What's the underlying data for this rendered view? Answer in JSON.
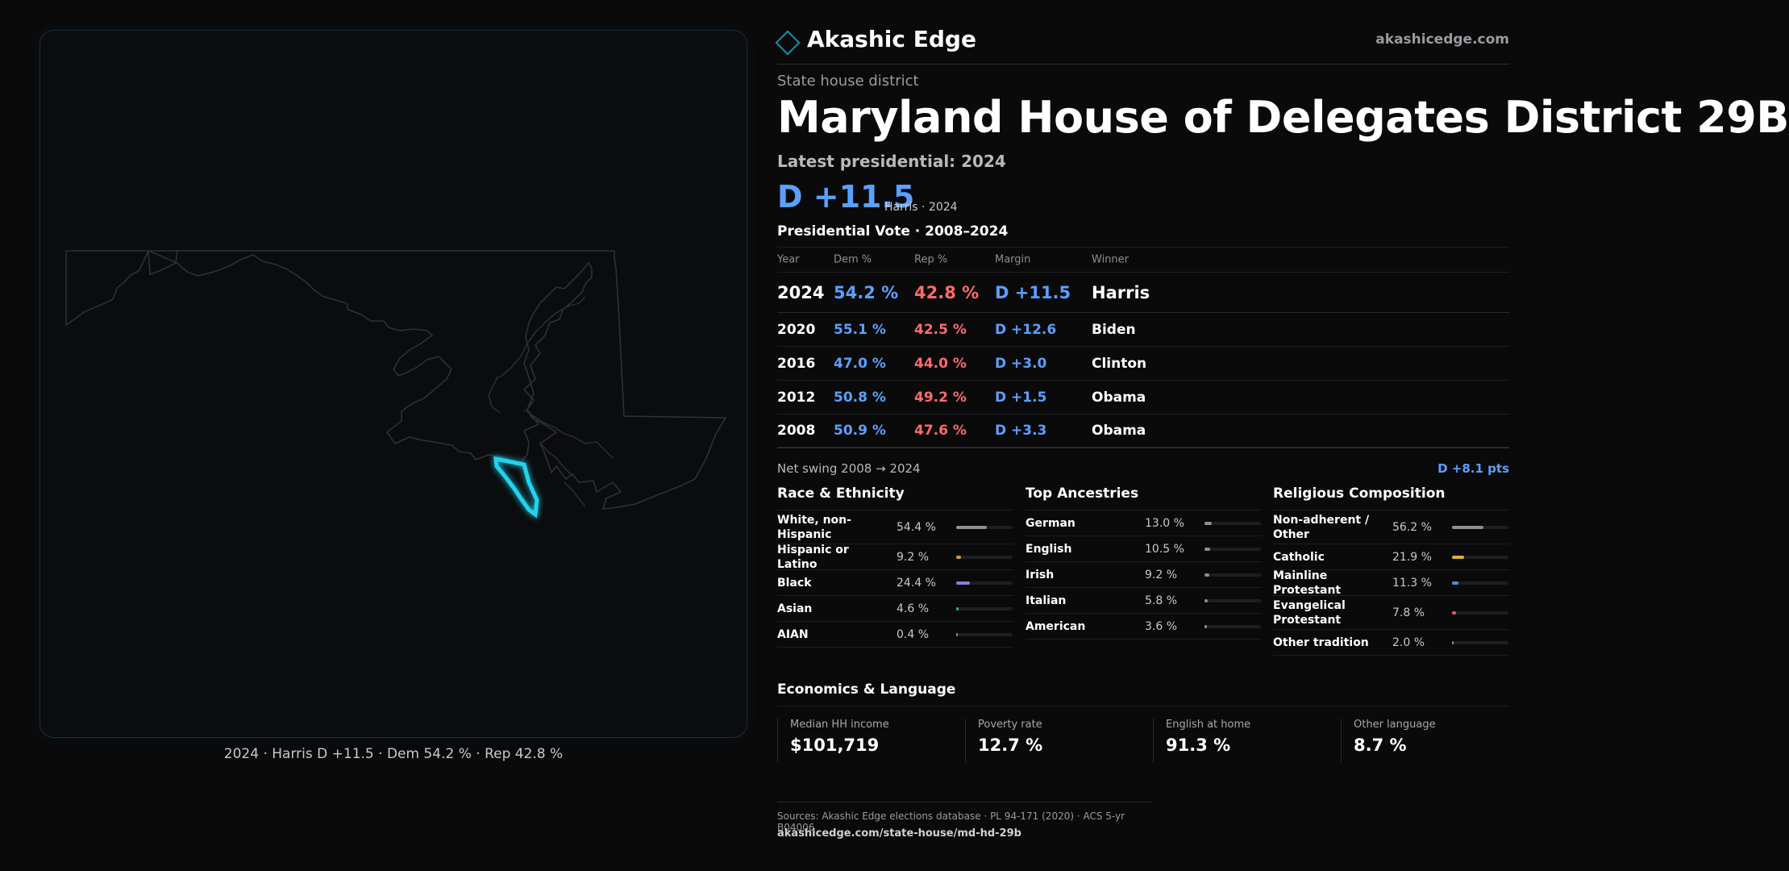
{
  "brand": {
    "name": "Akashic Edge",
    "url": "akashicedge.com"
  },
  "kicker": "State house district",
  "title": "Maryland House of Delegates District 29B",
  "latest": "Latest presidential: 2024",
  "headline": {
    "margin": "D +11.5",
    "sub": "Harris · 2024"
  },
  "pres_section_title": "Presidential Vote · 2008–2024",
  "pres_table": {
    "headers": [
      "Year",
      "Dem %",
      "Rep %",
      "Margin",
      "Winner"
    ],
    "rows": [
      [
        "2024",
        "54.2 %",
        "42.8 %",
        "D +11.5",
        "Harris"
      ],
      [
        "2020",
        "55.1 %",
        "42.5 %",
        "D +12.6",
        "Biden"
      ],
      [
        "2016",
        "47.0 %",
        "44.0 %",
        "D +3.0",
        "Clinton"
      ],
      [
        "2012",
        "50.8 %",
        "49.2 %",
        "D +1.5",
        "Obama"
      ],
      [
        "2008",
        "50.9 %",
        "47.6 %",
        "D +3.3",
        "Obama"
      ]
    ]
  },
  "swing": {
    "label": "Net swing 2008 → 2024",
    "value": "D +8.1 pts"
  },
  "race": {
    "title": "Race & Ethnicity",
    "rows": [
      {
        "label": "White, non-Hispanic",
        "value": "54.4 %",
        "pct": 54.4,
        "color": "#8a8f98"
      },
      {
        "label": "Hispanic or Latino",
        "value": "9.2 %",
        "pct": 9.2,
        "color": "#d99a2b"
      },
      {
        "label": "Black",
        "value": "24.4 %",
        "pct": 24.4,
        "color": "#8b7fd6"
      },
      {
        "label": "Asian",
        "value": "4.6 %",
        "pct": 4.6,
        "color": "#2fb58a"
      },
      {
        "label": "AIAN",
        "value": "0.4 %",
        "pct": 0.4,
        "color": "#8a8f98"
      }
    ]
  },
  "ancestry": {
    "title": "Top Ancestries",
    "rows": [
      {
        "label": "German",
        "value": "13.0 %",
        "pct": 13.0,
        "color": "#8a8f98"
      },
      {
        "label": "English",
        "value": "10.5 %",
        "pct": 10.5,
        "color": "#8a8f98"
      },
      {
        "label": "Irish",
        "value": "9.2 %",
        "pct": 9.2,
        "color": "#8a8f98"
      },
      {
        "label": "Italian",
        "value": "5.8 %",
        "pct": 5.8,
        "color": "#8a8f98"
      },
      {
        "label": "American",
        "value": "3.6 %",
        "pct": 3.6,
        "color": "#8a8f98"
      }
    ]
  },
  "religion": {
    "title": "Religious Composition",
    "rows": [
      {
        "label": "Non-adherent / Other",
        "value": "56.2 %",
        "pct": 56.2,
        "color": "#8a8f98"
      },
      {
        "label": "Catholic",
        "value": "21.9 %",
        "pct": 21.9,
        "color": "#e0b030"
      },
      {
        "label": "Mainline Protestant",
        "value": "11.3 %",
        "pct": 11.3,
        "color": "#4a8fe0"
      },
      {
        "label": "Evangelical Protestant",
        "value": "7.8 %",
        "pct": 7.8,
        "color": "#e05a5a"
      },
      {
        "label": "Other tradition",
        "value": "2.0 %",
        "pct": 2.0,
        "color": "#8a8f98"
      }
    ]
  },
  "economics": {
    "title": "Economics & Language",
    "items": [
      {
        "label": "Median HH income",
        "value": "$101,719"
      },
      {
        "label": "Poverty rate",
        "value": "12.7 %"
      },
      {
        "label": "English at home",
        "value": "91.3 %"
      },
      {
        "label": "Other language",
        "value": "8.7 %"
      }
    ]
  },
  "map_caption": "2024 · Harris D +11.5 · Dem 54.2 % · Rep 42.8 %",
  "sources": "Sources: Akashic Edge elections database · PL 94-171 (2020) · ACS 5-yr B04006",
  "sources_url": "akashicedge.com/state-house/md-hd-29b",
  "colors": {
    "dem": "#5aa0ff",
    "rep": "#ff6b6b",
    "accent": "#22d3ee"
  }
}
